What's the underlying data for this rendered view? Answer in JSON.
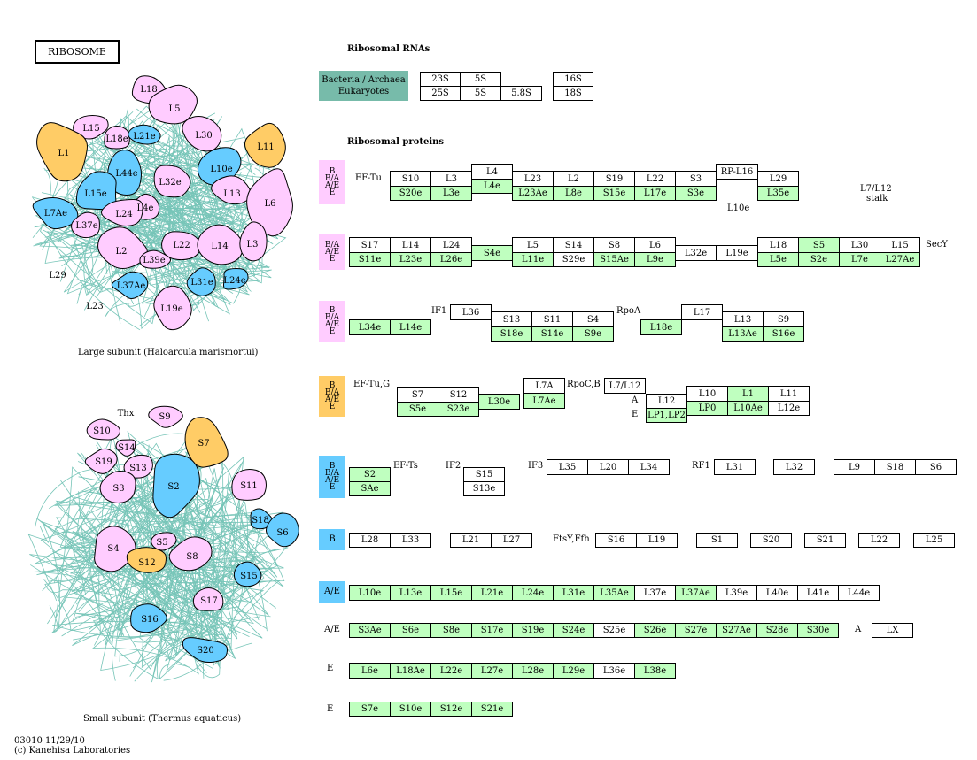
{
  "title": "RIBOSOME",
  "map_id": "03010 11/29/10",
  "copyright": "(c) Kanehisa Laboratories",
  "subunits": {
    "large_caption": "Large subunit (Haloarcula marismortui)",
    "small_caption": "Small subunit (Thermus aquaticus)",
    "large_proteins": [
      "L18",
      "L5",
      "L15",
      "L18e",
      "L21e",
      "L30",
      "L11",
      "L1",
      "L44e",
      "L10e",
      "L32e",
      "L15e",
      "L13",
      "L4e",
      "L6",
      "L7Ae",
      "L37e",
      "L24",
      "L22",
      "L14",
      "L3",
      "L2",
      "L39e",
      "L29",
      "L37Ae",
      "L31e",
      "L24e",
      "L23",
      "L19e"
    ],
    "small_proteins": [
      "Thx",
      "S9",
      "S10",
      "S14",
      "S7",
      "S19",
      "S13",
      "S3",
      "S2",
      "S11",
      "S18",
      "S6",
      "S5",
      "S4",
      "S12",
      "S8",
      "S15",
      "S17",
      "S16",
      "S20"
    ]
  },
  "rna": {
    "heading": "Ribosomal RNAs",
    "legend_line1": "Bacteria / Archaea",
    "legend_line2": "Eukaryotes",
    "row1": [
      "23S",
      "5S",
      "16S"
    ],
    "row2": [
      "25S",
      "5S",
      "5.8S",
      "18S"
    ]
  },
  "proteins_heading": "Ribosomal proteins",
  "tags": {
    "r1": "B B/A A/E E",
    "r2": "B/A A/E E",
    "r3": "B B/A A/E E",
    "r4": "B B/A A/E E",
    "r5": "B B/A A/E E",
    "r6": "B",
    "r7": "A/E"
  },
  "labels": {
    "eftu": "EF-Tu",
    "l10e": "L10e",
    "stalk1": "L7/L12",
    "stalk2": "stalk",
    "secy": "SecY",
    "if1": "IF1",
    "rpoa": "RpoA",
    "eftug": "EF-Tu,G",
    "rpocb": "RpoC,B",
    "a": "A",
    "e": "E",
    "efts": "EF-Ts",
    "if2": "IF2",
    "if3": "IF3",
    "rf1": "RF1",
    "ftsy": "FtsY,Ffh",
    "ae9": "A/E",
    "a9": "A",
    "e10": "E",
    "e11": "E"
  },
  "rows": {
    "r1_top": [
      "S10",
      "L3",
      "L4",
      "L23",
      "L2",
      "S19",
      "L22",
      "S3",
      "RP-L16",
      "L29"
    ],
    "r1_bot": [
      "S20e",
      "L3e",
      "L4e",
      "L23Ae",
      "L8e",
      "S15e",
      "L17e",
      "S3e",
      "L35e"
    ],
    "r2_top": [
      "S17",
      "L14",
      "L24",
      "L5",
      "S14",
      "S8",
      "L6",
      "L18",
      "S5",
      "L30",
      "L15"
    ],
    "r2_bot": [
      "S11e",
      "L23e",
      "L26e",
      "S4e",
      "L11e",
      "S29e",
      "S15Ae",
      "L9e",
      "L32e",
      "L19e",
      "L5e",
      "S2e",
      "L7e",
      "L27Ae"
    ],
    "r3_top": [
      "L36",
      "S13",
      "S11",
      "S4",
      "L17",
      "L13",
      "S9"
    ],
    "r3_bot": [
      "L34e",
      "L14e",
      "S18e",
      "S14e",
      "S9e",
      "L18e",
      "L13Ae",
      "S16e"
    ],
    "r4_top": [
      "S7",
      "S12",
      "L7A",
      "L7/L12",
      "L10",
      "L1",
      "L11",
      "L12"
    ],
    "r4_bot": [
      "S5e",
      "S23e",
      "L30e",
      "L7Ae",
      "LP1,LP2",
      "LP0",
      "L10Ae",
      "L12e"
    ],
    "r5": [
      "S2",
      "SAe",
      "S15",
      "S13e",
      "L35",
      "L20",
      "L34",
      "L31",
      "L32",
      "L9",
      "S18",
      "S6"
    ],
    "r6": [
      "L28",
      "L33",
      "L21",
      "L27",
      "S16",
      "L19",
      "S1",
      "S20",
      "S21",
      "L22",
      "L25"
    ],
    "r7": [
      "L10e",
      "L13e",
      "L15e",
      "L21e",
      "L24e",
      "L31e",
      "L35Ae",
      "L37e",
      "L37Ae",
      "L39e",
      "L40e",
      "L41e",
      "L44e"
    ],
    "r8": [
      "S3Ae",
      "S6e",
      "S8e",
      "S17e",
      "S19e",
      "S24e",
      "S25e",
      "S26e",
      "S27e",
      "S27Ae",
      "S28e",
      "S30e",
      "LX"
    ],
    "r9": [
      "L6e",
      "L18Ae",
      "L22e",
      "L27e",
      "L28e",
      "L29e",
      "L36e",
      "L38e"
    ],
    "r10": [
      "S7e",
      "S10e",
      "S12e",
      "S21e"
    ]
  },
  "colors": {
    "pink": "#ffccff",
    "blue": "#66ccff",
    "orange": "#ffcc66",
    "green": "#bfffbf",
    "teal": "#77bbaa"
  }
}
